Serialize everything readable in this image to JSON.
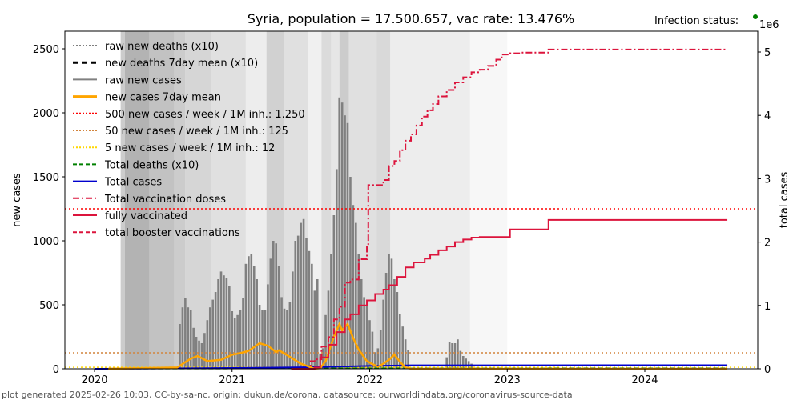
{
  "chart_data": {
    "type": "bar",
    "title": "Syria, population = 17.500.657, vac rate: 13.476%",
    "status_label": "Infection status:",
    "status_color": "#008000",
    "ylabel_left": "new cases",
    "ylabel_right": "total cases",
    "right_axis_multiplier": "1e6",
    "xlim": [
      2019.78,
      2024.82
    ],
    "ylim_left": [
      0,
      2640
    ],
    "ylim_right": [
      0,
      5.28
    ],
    "x_ticks": [
      {
        "value": 2020,
        "label": "2020"
      },
      {
        "value": 2021,
        "label": "2021"
      },
      {
        "value": 2022,
        "label": "2022"
      },
      {
        "value": 2023,
        "label": "2023"
      },
      {
        "value": 2024,
        "label": "2024"
      }
    ],
    "y_ticks_left": [
      {
        "value": 0,
        "label": "0"
      },
      {
        "value": 500,
        "label": "500"
      },
      {
        "value": 1000,
        "label": "1000"
      },
      {
        "value": 1500,
        "label": "1500"
      },
      {
        "value": 2000,
        "label": "2000"
      },
      {
        "value": 2500,
        "label": "2500"
      }
    ],
    "y_ticks_right": [
      {
        "value": 0,
        "label": "0"
      },
      {
        "value": 1,
        "label": "1"
      },
      {
        "value": 2,
        "label": "2"
      },
      {
        "value": 3,
        "label": "3"
      },
      {
        "value": 4,
        "label": "4"
      },
      {
        "value": 5,
        "label": "5"
      }
    ],
    "thresholds": [
      {
        "name": "500 new cases / week / 1M inh.: 1.250",
        "value": 1250,
        "color": "#ff0000"
      },
      {
        "name": "50 new cases / week / 1M inh.: 125",
        "value": 125,
        "color": "#d2843c"
      },
      {
        "name": "5 new cases / week / 1M inh.: 12",
        "value": 12,
        "color": "#ffd700"
      }
    ],
    "legend": [
      {
        "label": "raw new deaths (x10)",
        "color": "#808080",
        "style": "dotted"
      },
      {
        "label": "new deaths 7day mean (x10)",
        "color": "#000000",
        "style": "dashed-bold"
      },
      {
        "label": "raw new cases",
        "color": "#808080",
        "style": "solid"
      },
      {
        "label": "new cases 7day mean",
        "color": "#ffa500",
        "style": "solid-bold"
      },
      {
        "label": "500 new cases / week / 1M inh.: 1.250",
        "color": "#ff0000",
        "style": "dotted"
      },
      {
        "label": "50 new cases / week / 1M inh.: 125",
        "color": "#d2843c",
        "style": "dotted"
      },
      {
        "label": "5 new cases / week / 1M inh.: 12",
        "color": "#ffd700",
        "style": "dotted"
      },
      {
        "label": "Total deaths (x10)",
        "color": "#008000",
        "style": "dashed"
      },
      {
        "label": "Total cases",
        "color": "#0000cd",
        "style": "solid"
      },
      {
        "label": "Total vaccination doses",
        "color": "#dc143c",
        "style": "dashdot"
      },
      {
        "label": "fully vaccinated",
        "color": "#dc143c",
        "style": "solid"
      },
      {
        "label": "total booster vaccinations",
        "color": "#dc143c",
        "style": "dashed"
      }
    ],
    "background_bands": [
      {
        "start": 2020.19,
        "end": 2020.22,
        "shade": 0.8
      },
      {
        "start": 2020.22,
        "end": 2020.4,
        "shade": 0.7
      },
      {
        "start": 2020.4,
        "end": 2020.58,
        "shade": 0.76
      },
      {
        "start": 2020.58,
        "end": 2020.66,
        "shade": 0.8
      },
      {
        "start": 2020.66,
        "end": 2020.85,
        "shade": 0.84
      },
      {
        "start": 2020.85,
        "end": 2021.1,
        "shade": 0.88
      },
      {
        "start": 2021.1,
        "end": 2021.25,
        "shade": 0.93
      },
      {
        "start": 2021.25,
        "end": 2021.38,
        "shade": 0.82
      },
      {
        "start": 2021.38,
        "end": 2021.55,
        "shade": 0.88
      },
      {
        "start": 2021.55,
        "end": 2021.65,
        "shade": 0.94
      },
      {
        "start": 2021.65,
        "end": 2021.72,
        "shade": 0.86
      },
      {
        "start": 2021.72,
        "end": 2021.78,
        "shade": 0.9
      },
      {
        "start": 2021.78,
        "end": 2021.85,
        "shade": 0.8
      },
      {
        "start": 2021.85,
        "end": 2022.05,
        "shade": 0.88
      },
      {
        "start": 2022.05,
        "end": 2022.15,
        "shade": 0.85
      },
      {
        "start": 2022.15,
        "end": 2022.73,
        "shade": 0.93
      },
      {
        "start": 2022.73,
        "end": 2023.0,
        "shade": 0.97
      }
    ],
    "raw_new_cases": {
      "x": [
        2020.62,
        2020.64,
        2020.66,
        2020.68,
        2020.7,
        2020.72,
        2020.74,
        2020.76,
        2020.78,
        2020.8,
        2020.82,
        2020.84,
        2020.86,
        2020.88,
        2020.9,
        2020.92,
        2020.94,
        2020.96,
        2020.98,
        2021.0,
        2021.02,
        2021.04,
        2021.06,
        2021.08,
        2021.1,
        2021.12,
        2021.14,
        2021.16,
        2021.18,
        2021.2,
        2021.22,
        2021.24,
        2021.26,
        2021.28,
        2021.3,
        2021.32,
        2021.34,
        2021.36,
        2021.38,
        2021.4,
        2021.42,
        2021.44,
        2021.46,
        2021.48,
        2021.5,
        2021.52,
        2021.54,
        2021.56,
        2021.58,
        2021.6,
        2021.62,
        2021.64,
        2021.66,
        2021.68,
        2021.7,
        2021.72,
        2021.74,
        2021.76,
        2021.78,
        2021.8,
        2021.82,
        2021.84,
        2021.86,
        2021.88,
        2021.9,
        2021.92,
        2021.94,
        2021.96,
        2021.98,
        2022.0,
        2022.02,
        2022.04,
        2022.06,
        2022.08,
        2022.1,
        2022.12,
        2022.14,
        2022.16,
        2022.18,
        2022.2,
        2022.22,
        2022.24,
        2022.26,
        2022.28,
        2022.56,
        2022.58,
        2022.6,
        2022.62,
        2022.64,
        2022.66,
        2022.68,
        2022.7,
        2022.72,
        2022.74
      ],
      "values": [
        350,
        480,
        550,
        480,
        460,
        320,
        250,
        220,
        200,
        280,
        380,
        480,
        540,
        600,
        700,
        760,
        730,
        710,
        650,
        450,
        400,
        420,
        460,
        550,
        820,
        880,
        900,
        800,
        700,
        500,
        460,
        460,
        660,
        860,
        1000,
        980,
        800,
        560,
        470,
        460,
        520,
        760,
        1000,
        1040,
        1140,
        1170,
        1020,
        920,
        820,
        610,
        700,
        120,
        160,
        420,
        610,
        900,
        1200,
        1560,
        2120,
        2080,
        1980,
        1920,
        1500,
        1280,
        1140,
        900,
        700,
        560,
        500,
        380,
        290,
        130,
        160,
        300,
        540,
        750,
        900,
        860,
        700,
        600,
        430,
        330,
        230,
        150,
        90,
        210,
        200,
        200,
        230,
        140,
        100,
        80,
        60,
        40
      ]
    },
    "new_cases_7day_mean": {
      "x": [
        2020.1,
        2020.6,
        2020.7,
        2020.75,
        2020.82,
        2020.92,
        2021.0,
        2021.05,
        2021.12,
        2021.2,
        2021.26,
        2021.32,
        2021.34,
        2021.38,
        2021.44,
        2021.5,
        2021.6,
        2021.64,
        2021.68,
        2021.74,
        2021.78,
        2021.8,
        2021.84,
        2021.88,
        2021.92,
        2021.98,
        2022.06,
        2022.1,
        2022.14,
        2022.18,
        2022.22,
        2022.26,
        2022.3,
        2024.6
      ],
      "values": [
        0,
        10,
        80,
        100,
        60,
        70,
        110,
        120,
        140,
        200,
        180,
        130,
        145,
        120,
        80,
        40,
        0,
        5,
        60,
        250,
        350,
        300,
        350,
        240,
        150,
        60,
        15,
        40,
        70,
        110,
        55,
        10,
        0,
        0
      ]
    },
    "total_cases_millions": {
      "x": [
        2020.0,
        2021.0,
        2021.6,
        2022.0,
        2022.3,
        2024.6
      ],
      "values": [
        0,
        0.012,
        0.025,
        0.045,
        0.055,
        0.057
      ]
    },
    "total_vaccination_doses_millions": {
      "x": [
        2021.43,
        2021.57,
        2021.6,
        2021.65,
        2021.7,
        2021.74,
        2021.78,
        2021.82,
        2021.86,
        2021.92,
        2021.98,
        2021.99,
        2022.1,
        2022.14,
        2022.18,
        2022.22,
        2022.26,
        2022.3,
        2022.34,
        2022.38,
        2022.42,
        2022.46,
        2022.5,
        2022.56,
        2022.62,
        2022.68,
        2022.74,
        2022.8,
        2022.86,
        2022.92,
        2022.96,
        2023.02,
        2023.1,
        2023.3,
        2024.6
      ],
      "values": [
        0.0,
        0.12,
        0.15,
        0.35,
        0.5,
        0.78,
        0.98,
        1.36,
        1.41,
        1.73,
        1.93,
        2.9,
        2.98,
        3.2,
        3.28,
        3.45,
        3.6,
        3.7,
        3.84,
        3.98,
        4.08,
        4.18,
        4.3,
        4.4,
        4.52,
        4.6,
        4.68,
        4.72,
        4.78,
        4.88,
        4.96,
        4.98,
        4.99,
        5.04,
        5.04
      ]
    },
    "fully_vaccinated_millions": {
      "x": [
        2021.43,
        2021.6,
        2021.64,
        2021.7,
        2021.76,
        2021.82,
        2021.86,
        2021.92,
        2021.98,
        2022.04,
        2022.1,
        2022.14,
        2022.2,
        2022.26,
        2022.32,
        2022.4,
        2022.44,
        2022.5,
        2022.56,
        2022.62,
        2022.68,
        2022.74,
        2022.8,
        2022.96,
        2023.02,
        2023.3,
        2024.6
      ],
      "values": [
        0,
        0.02,
        0.18,
        0.38,
        0.58,
        0.78,
        0.86,
        1.0,
        1.08,
        1.18,
        1.25,
        1.32,
        1.45,
        1.6,
        1.68,
        1.74,
        1.8,
        1.87,
        1.93,
        2.0,
        2.04,
        2.07,
        2.08,
        2.08,
        2.2,
        2.35,
        2.35
      ]
    },
    "total_deaths_x10_millions": {
      "x": [
        2020.2,
        2024.6
      ],
      "values": [
        0.005,
        0.008
      ]
    },
    "footer": "plot generated 2025-02-26 10:03, CC-by-sa-nc, origin: dukun.de/corona, datasource: ourworldindata.org/coronavirus-source-data"
  }
}
